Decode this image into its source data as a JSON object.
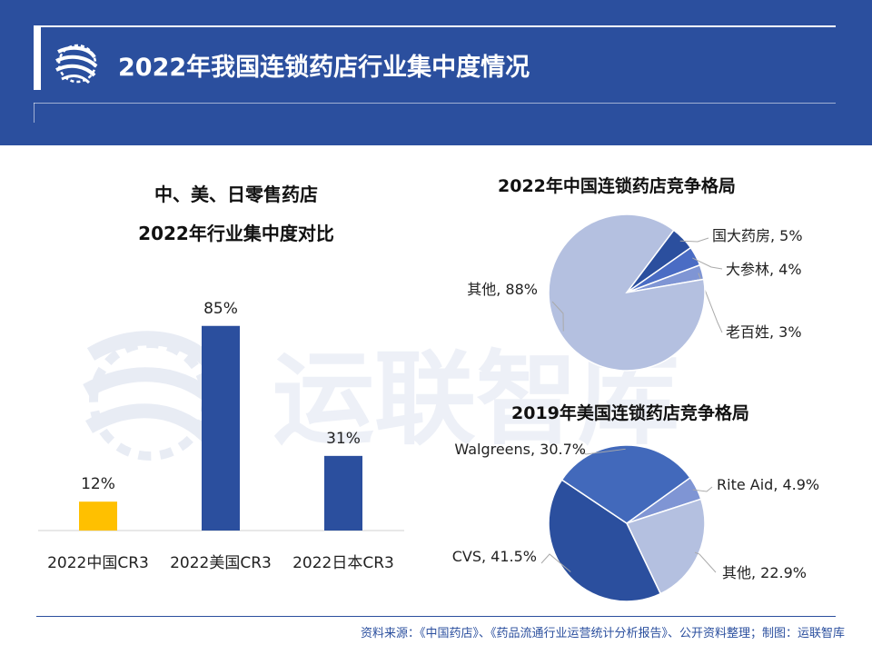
{
  "header": {
    "title": "2022年我国连锁药店行业集中度情况"
  },
  "watermark": {
    "text": "运联智库"
  },
  "source": "资料来源：《中国药店》、《药品流通行业运营统计分析报告》、公开资料整理；制图：运联智库",
  "colors": {
    "header_bg": "#2b4f9e",
    "bar_blue": "#2b4f9e",
    "bar_highlight": "#ffc000"
  },
  "chart_data": [
    {
      "type": "bar",
      "title_lines": [
        "中、美、日零售药店",
        "2022年行业集中度对比"
      ],
      "categories": [
        "2022中国CR3",
        "2022美国CR3",
        "2022日本CR3"
      ],
      "values": [
        12,
        85,
        31
      ],
      "data_labels": [
        "12%",
        "85%",
        "31%"
      ],
      "unit": "%",
      "bar_colors": [
        "#ffc000",
        "#2b4f9e",
        "#2b4f9e"
      ],
      "ylim": [
        0,
        100
      ],
      "grid": false
    },
    {
      "type": "pie",
      "title": "2022年中国连锁药店竞争格局",
      "slices": [
        {
          "label": "国大药房, 5%",
          "value": 5,
          "color": "#2b4f9e"
        },
        {
          "label": "大参林, 4%",
          "value": 4,
          "color": "#4a6cc4"
        },
        {
          "label": "老百姓, 3%",
          "value": 3,
          "color": "#7f95d4"
        },
        {
          "label": "其他, 88%",
          "value": 88,
          "color": "#b4c0e0"
        }
      ]
    },
    {
      "type": "pie",
      "title": "2019年美国连锁药店竞争格局",
      "slices": [
        {
          "label": "Rite Aid, 4.9%",
          "value": 4.9,
          "color": "#7f95d4"
        },
        {
          "label": "其他, 22.9%",
          "value": 22.9,
          "color": "#b4c0e0"
        },
        {
          "label": "CVS, 41.5%",
          "value": 41.5,
          "color": "#2b4f9e"
        },
        {
          "label": "Walgreens, 30.7%",
          "value": 30.7,
          "color": "#4269bb"
        }
      ]
    }
  ]
}
